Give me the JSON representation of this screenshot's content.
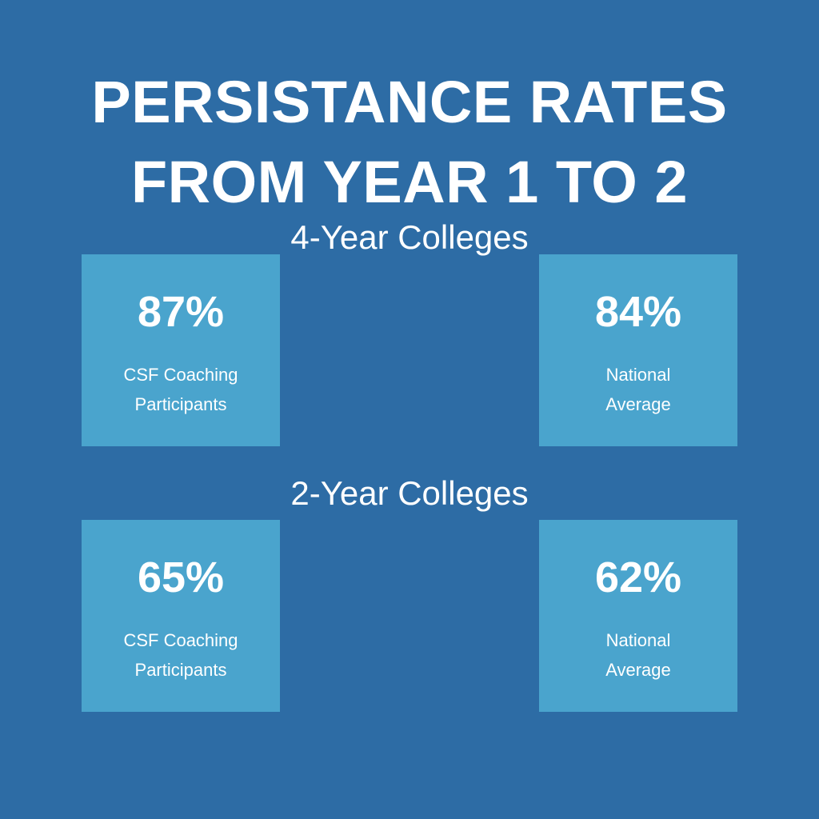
{
  "title": {
    "line1": "PERSISTANCE RATES",
    "line2": "FROM YEAR 1 TO 2"
  },
  "sections": [
    {
      "heading": "4-Year Colleges",
      "cards": [
        {
          "value": "87%",
          "label_line1": "CSF Coaching",
          "label_line2": "Participants"
        },
        {
          "value": "84%",
          "label_line1": "National",
          "label_line2": "Average"
        }
      ]
    },
    {
      "heading": "2-Year Colleges",
      "cards": [
        {
          "value": "65%",
          "label_line1": "CSF Coaching",
          "label_line2": "Participants"
        },
        {
          "value": "62%",
          "label_line1": "National",
          "label_line2": "Average"
        }
      ]
    }
  ],
  "colors": {
    "background": "#2d6ca5",
    "card": "#4aa4cd",
    "text": "#ffffff"
  }
}
